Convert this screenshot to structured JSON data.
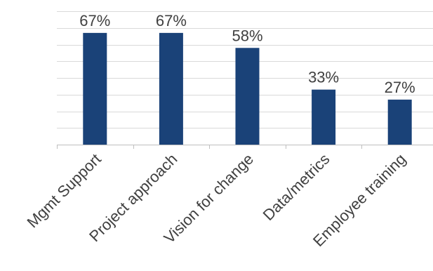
{
  "chart_data": {
    "type": "bar",
    "categories": [
      "Mgmt Support",
      "Project approach",
      "Vision for change",
      "Data/metrics",
      "Employee training"
    ],
    "values": [
      67,
      67,
      58,
      33,
      27
    ],
    "data_labels": [
      "67%",
      "67%",
      "58%",
      "33%",
      "27%"
    ],
    "ylim": [
      0,
      80
    ],
    "y_grid_step": 10,
    "grid": true,
    "legend": "none",
    "bar_color": "#1a4278",
    "title": "",
    "xlabel": "",
    "ylabel": ""
  }
}
